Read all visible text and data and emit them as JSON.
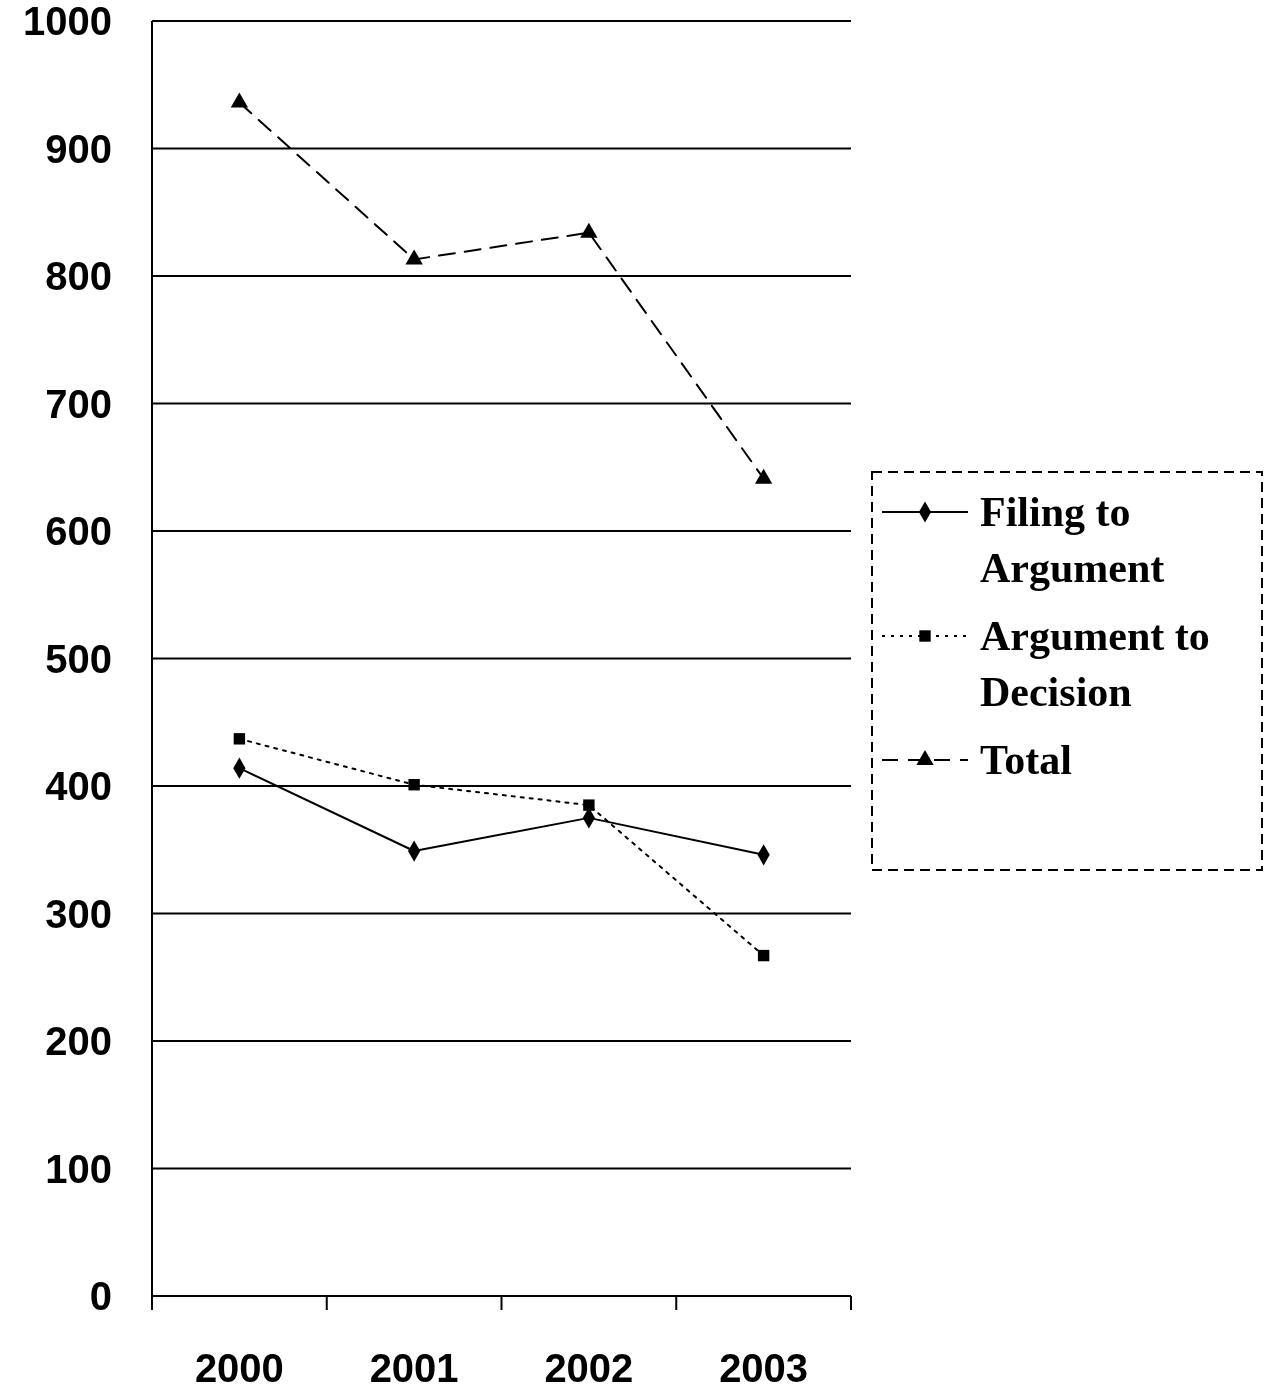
{
  "chart_data": {
    "type": "line",
    "categories": [
      "2000",
      "2001",
      "2002",
      "2003"
    ],
    "series": [
      {
        "name": "Filing to Argument",
        "color": "#000000",
        "values": [
          414,
          349,
          375,
          346
        ],
        "marker": "diamond",
        "line_style": "solid"
      },
      {
        "name": "Argument to Decision",
        "color": "#000000",
        "values": [
          437,
          401,
          385,
          267
        ],
        "marker": "square",
        "line_style": "dotted"
      },
      {
        "name": "Total",
        "color": "#000000",
        "values": [
          936,
          813,
          834,
          641
        ],
        "marker": "triangle",
        "line_style": "dashed"
      }
    ],
    "ylim": [
      0,
      1000
    ],
    "yticks": [
      0,
      100,
      200,
      300,
      400,
      500,
      600,
      700,
      800,
      900,
      1000
    ],
    "grid": "y",
    "legend": "right"
  }
}
